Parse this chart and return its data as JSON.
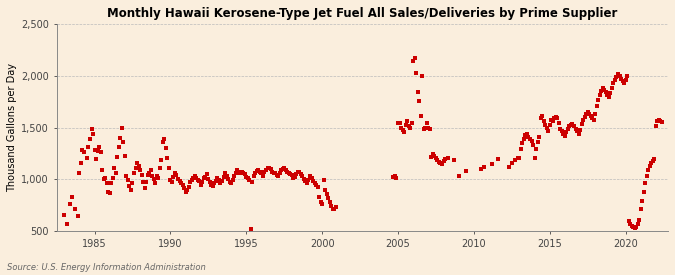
{
  "title": "Monthly Hawaii Kerosene-Type Jet Fuel All Sales/Deliveries by Prime Supplier",
  "ylabel": "Thousand Gallons per Day",
  "source": "Source: U.S. Energy Information Administration",
  "background_color": "#faeedd",
  "marker_color": "#cc0000",
  "marker": "s",
  "marker_size": 2.5,
  "xlim": [
    1982.5,
    2022.8
  ],
  "ylim": [
    500,
    2500
  ],
  "yticks": [
    500,
    1000,
    1500,
    2000,
    2500
  ],
  "ytick_labels": [
    "500",
    "1,000",
    "1,500",
    "2,000",
    "2,500"
  ],
  "xticks": [
    1985,
    1990,
    1995,
    2000,
    2005,
    2010,
    2015,
    2020
  ],
  "grid_color": "#bbbbbb",
  "data_x": [
    1983.0,
    1983.2,
    1983.4,
    1983.5,
    1983.7,
    1983.9,
    1984.0,
    1984.1,
    1984.2,
    1984.3,
    1984.5,
    1984.6,
    1984.7,
    1984.8,
    1984.9,
    1985.0,
    1985.1,
    1985.2,
    1985.3,
    1985.4,
    1985.5,
    1985.6,
    1985.7,
    1985.8,
    1985.9,
    1986.0,
    1986.1,
    1986.2,
    1986.3,
    1986.4,
    1986.5,
    1986.6,
    1986.7,
    1986.8,
    1986.9,
    1987.0,
    1987.1,
    1987.2,
    1987.3,
    1987.4,
    1987.5,
    1987.6,
    1987.7,
    1987.8,
    1987.9,
    1988.0,
    1988.1,
    1988.2,
    1988.3,
    1988.4,
    1988.5,
    1988.6,
    1988.7,
    1988.8,
    1988.9,
    1989.0,
    1989.1,
    1989.2,
    1989.3,
    1989.4,
    1989.5,
    1989.6,
    1989.7,
    1989.8,
    1989.9,
    1990.0,
    1990.1,
    1990.2,
    1990.3,
    1990.4,
    1990.5,
    1990.6,
    1990.7,
    1990.8,
    1990.9,
    1991.0,
    1991.1,
    1991.2,
    1991.3,
    1991.4,
    1991.5,
    1991.6,
    1991.7,
    1991.8,
    1991.9,
    1992.0,
    1992.1,
    1992.2,
    1992.3,
    1992.4,
    1992.5,
    1992.6,
    1992.7,
    1992.8,
    1992.9,
    1993.0,
    1993.1,
    1993.2,
    1993.3,
    1993.4,
    1993.5,
    1993.6,
    1993.7,
    1993.8,
    1993.9,
    1994.0,
    1994.1,
    1994.2,
    1994.3,
    1994.4,
    1994.5,
    1994.6,
    1994.7,
    1994.8,
    1994.9,
    1995.0,
    1995.1,
    1995.2,
    1995.3,
    1995.4,
    1995.5,
    1995.6,
    1995.7,
    1995.8,
    1995.9,
    1996.0,
    1996.1,
    1996.2,
    1996.3,
    1996.4,
    1996.5,
    1996.6,
    1996.7,
    1996.8,
    1996.9,
    1997.0,
    1997.1,
    1997.2,
    1997.3,
    1997.4,
    1997.5,
    1997.6,
    1997.7,
    1997.8,
    1997.9,
    1998.0,
    1998.1,
    1998.2,
    1998.3,
    1998.4,
    1998.5,
    1998.6,
    1998.7,
    1998.8,
    1998.9,
    1999.0,
    1999.1,
    1999.2,
    1999.3,
    1999.4,
    1999.5,
    1999.6,
    1999.7,
    1999.8,
    1999.9,
    2000.0,
    2000.1,
    2000.2,
    2000.3,
    2000.4,
    2000.5,
    2000.6,
    2000.7,
    2000.8,
    2000.9,
    2004.7,
    2004.8,
    2004.9,
    2005.0,
    2005.1,
    2005.2,
    2005.3,
    2005.4,
    2005.5,
    2005.6,
    2005.7,
    2005.8,
    2005.9,
    2006.0,
    2006.1,
    2006.2,
    2006.3,
    2006.4,
    2006.5,
    2006.6,
    2006.7,
    2006.8,
    2006.9,
    2007.0,
    2007.1,
    2007.2,
    2007.3,
    2007.4,
    2007.5,
    2007.6,
    2007.7,
    2007.8,
    2007.9,
    2008.0,
    2008.1,
    2008.3,
    2008.7,
    2009.0,
    2009.5,
    2010.5,
    2010.7,
    2011.2,
    2011.6,
    2012.3,
    2012.5,
    2012.7,
    2012.9,
    2013.0,
    2013.1,
    2013.2,
    2013.3,
    2013.4,
    2013.5,
    2013.6,
    2013.7,
    2013.8,
    2013.9,
    2014.0,
    2014.1,
    2014.2,
    2014.3,
    2014.4,
    2014.5,
    2014.6,
    2014.7,
    2014.8,
    2014.9,
    2015.0,
    2015.1,
    2015.2,
    2015.3,
    2015.4,
    2015.5,
    2015.6,
    2015.7,
    2015.8,
    2015.9,
    2016.0,
    2016.1,
    2016.2,
    2016.3,
    2016.4,
    2016.5,
    2016.6,
    2016.7,
    2016.8,
    2016.9,
    2017.0,
    2017.1,
    2017.2,
    2017.3,
    2017.4,
    2017.5,
    2017.6,
    2017.7,
    2017.8,
    2017.9,
    2018.0,
    2018.1,
    2018.2,
    2018.3,
    2018.4,
    2018.5,
    2018.6,
    2018.7,
    2018.8,
    2018.9,
    2019.0,
    2019.1,
    2019.2,
    2019.3,
    2019.4,
    2019.5,
    2019.6,
    2019.7,
    2019.8,
    2019.9,
    2020.0,
    2020.1,
    2020.2,
    2020.3,
    2020.4,
    2020.5,
    2020.6,
    2020.7,
    2020.8,
    2020.9,
    2021.0,
    2021.1,
    2021.2,
    2021.3,
    2021.4,
    2021.5,
    2021.6,
    2021.7,
    2021.8,
    2021.9,
    2022.0,
    2022.1,
    2022.2,
    2022.3,
    2022.4
  ],
  "data_y": [
    660,
    570,
    760,
    830,
    710,
    650,
    1060,
    1160,
    1280,
    1260,
    1210,
    1310,
    1390,
    1490,
    1440,
    1280,
    1200,
    1270,
    1310,
    1260,
    1090,
    1000,
    1010,
    960,
    880,
    870,
    960,
    1010,
    1110,
    1060,
    1220,
    1310,
    1400,
    1500,
    1360,
    1230,
    1030,
    990,
    940,
    900,
    960,
    1060,
    1110,
    1160,
    1130,
    1090,
    1040,
    970,
    920,
    970,
    1040,
    1060,
    1090,
    1030,
    1000,
    960,
    1030,
    1010,
    1110,
    1190,
    1360,
    1390,
    1300,
    1210,
    1110,
    990,
    970,
    1020,
    1060,
    1040,
    1000,
    980,
    960,
    950,
    920,
    880,
    900,
    930,
    970,
    990,
    1010,
    1030,
    1010,
    990,
    980,
    950,
    970,
    1010,
    1020,
    1050,
    1000,
    970,
    950,
    940,
    960,
    980,
    1010,
    990,
    960,
    980,
    1020,
    1060,
    1030,
    1000,
    970,
    960,
    990,
    1030,
    1060,
    1090,
    1070,
    1060,
    1070,
    1060,
    1050,
    1020,
    1010,
    990,
    520,
    970,
    1030,
    1060,
    1080,
    1090,
    1070,
    1060,
    1030,
    1070,
    1090,
    1110,
    1110,
    1100,
    1070,
    1060,
    1060,
    1040,
    1030,
    1060,
    1090,
    1100,
    1110,
    1090,
    1070,
    1060,
    1050,
    1040,
    1010,
    1020,
    1050,
    1070,
    1070,
    1050,
    1030,
    1000,
    980,
    960,
    990,
    1030,
    1010,
    980,
    960,
    950,
    930,
    830,
    780,
    760,
    990,
    900,
    860,
    820,
    780,
    740,
    710,
    710,
    730,
    1020,
    1030,
    1010,
    1540,
    1540,
    1500,
    1480,
    1460,
    1520,
    1560,
    1510,
    1500,
    1540,
    2140,
    2170,
    2030,
    1840,
    1760,
    1610,
    2000,
    1490,
    1500,
    1540,
    1500,
    1490,
    1220,
    1240,
    1230,
    1210,
    1190,
    1170,
    1160,
    1150,
    1180,
    1200,
    1210,
    1190,
    1030,
    1080,
    1100,
    1120,
    1150,
    1200,
    1120,
    1160,
    1190,
    1210,
    1210,
    1290,
    1350,
    1390,
    1430,
    1440,
    1410,
    1390,
    1370,
    1330,
    1210,
    1290,
    1360,
    1410,
    1590,
    1610,
    1560,
    1520,
    1500,
    1470,
    1520,
    1570,
    1560,
    1590,
    1600,
    1590,
    1540,
    1490,
    1470,
    1440,
    1420,
    1460,
    1490,
    1510,
    1520,
    1530,
    1510,
    1490,
    1470,
    1440,
    1480,
    1530,
    1570,
    1600,
    1630,
    1650,
    1630,
    1610,
    1590,
    1570,
    1630,
    1710,
    1770,
    1810,
    1850,
    1880,
    1860,
    1840,
    1810,
    1790,
    1830,
    1880,
    1930,
    1960,
    1990,
    2020,
    2000,
    1970,
    1950,
    1930,
    1960,
    2000,
    600,
    570,
    550,
    540,
    530,
    540,
    570,
    610,
    710,
    790,
    880,
    960,
    1030,
    1090,
    1130,
    1160,
    1180,
    1200,
    1510,
    1560,
    1570,
    1560,
    1550
  ]
}
